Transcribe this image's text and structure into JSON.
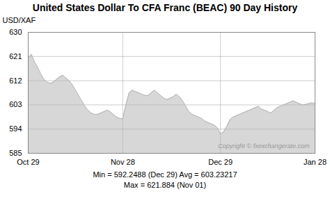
{
  "chart_data": {
    "type": "area",
    "title": "United States Dollar To CFA Franc (BEAC) 90 Day History",
    "ylabel": "USD/XAF",
    "annotations": [
      "Copyright © fxexchangerate.com"
    ],
    "footer": [
      "Min = 592.2488 (Dec 29) Avg = 603.23217",
      "Max = 621.884 (Nov 01)"
    ],
    "color": "#b0b0b0",
    "grid": true,
    "ylim": [
      585,
      630
    ],
    "yticks": [
      585,
      594,
      603,
      612,
      621,
      630
    ],
    "categories": [
      "Oct 29",
      null,
      null,
      null,
      null,
      null,
      null,
      null,
      null,
      null,
      null,
      null,
      null,
      null,
      null,
      null,
      null,
      null,
      null,
      null,
      null,
      null,
      null,
      null,
      null,
      null,
      null,
      null,
      null,
      null,
      "Nov 28",
      null,
      null,
      null,
      null,
      null,
      null,
      null,
      null,
      null,
      null,
      null,
      null,
      null,
      null,
      null,
      null,
      null,
      null,
      null,
      null,
      null,
      null,
      null,
      null,
      null,
      null,
      null,
      null,
      null,
      null,
      "Dec 29",
      null,
      null,
      null,
      null,
      null,
      null,
      null,
      null,
      null,
      null,
      null,
      null,
      null,
      null,
      null,
      null,
      null,
      null,
      null,
      null,
      null,
      null,
      null,
      null,
      null,
      null,
      null,
      null,
      null,
      "Jan 28"
    ],
    "values": [
      620.5,
      621.884,
      619.0,
      617.0,
      614.5,
      612.5,
      611.5,
      611.0,
      611.5,
      612.5,
      613.5,
      614.0,
      613.0,
      612.0,
      610.5,
      608.5,
      606.5,
      604.5,
      602.5,
      601.0,
      600.0,
      599.5,
      599.5,
      600.0,
      600.5,
      601.0,
      600.5,
      599.5,
      598.5,
      598.0,
      597.8,
      603.0,
      607.5,
      608.5,
      608.0,
      607.5,
      607.0,
      606.5,
      606.5,
      607.5,
      608.5,
      607.5,
      606.5,
      605.5,
      605.0,
      605.5,
      606.0,
      607.0,
      606.0,
      604.5,
      602.5,
      600.5,
      599.5,
      599.0,
      598.5,
      598.0,
      597.0,
      596.5,
      596.0,
      595.5,
      594.5,
      592.2488,
      593.0,
      595.0,
      597.5,
      598.5,
      599.0,
      599.5,
      600.0,
      600.5,
      601.0,
      601.5,
      602.0,
      602.5,
      601.5,
      601.0,
      600.5,
      600.0,
      601.0,
      602.0,
      602.5,
      603.0,
      603.5,
      604.0,
      604.5,
      604.0,
      603.5,
      603.0,
      603.2,
      603.5,
      603.8,
      603.5
    ]
  }
}
